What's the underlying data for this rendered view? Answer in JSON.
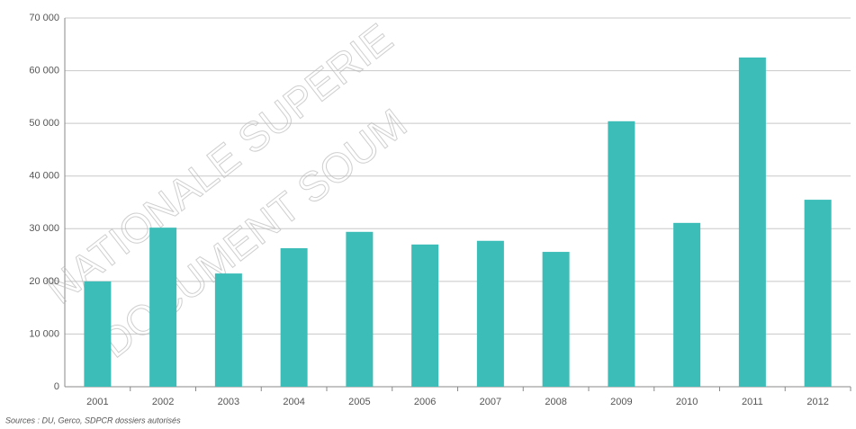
{
  "chart_data": {
    "type": "bar",
    "source": "Sources : DU, Gerco, SDPCR dossiers autorisés",
    "categories": [
      "2001",
      "2002",
      "2003",
      "2004",
      "2005",
      "2006",
      "2007",
      "2008",
      "2009",
      "2010",
      "2011",
      "2012"
    ],
    "values": [
      20000,
      30200,
      21500,
      26300,
      29400,
      27000,
      27700,
      25600,
      50400,
      31100,
      62500,
      35500
    ],
    "color": "#3dbdb8",
    "ylim": [
      0,
      70000
    ],
    "yticks": [
      0,
      {
        "value": 10000,
        "label": "10 000"
      },
      {
        "value": 20000,
        "label": "20 000"
      },
      {
        "value": 30000,
        "label": "30 000"
      },
      {
        "value": 40000,
        "label": "40 000"
      },
      {
        "value": 50000,
        "label": "50 000"
      },
      {
        "value": 60000,
        "label": "60 000"
      },
      {
        "value": 70000,
        "label": "70 000"
      }
    ],
    "grid": true
  },
  "watermarks": [
    "NATIONALE SUPERIE",
    "DOCUMENT SOUM"
  ]
}
